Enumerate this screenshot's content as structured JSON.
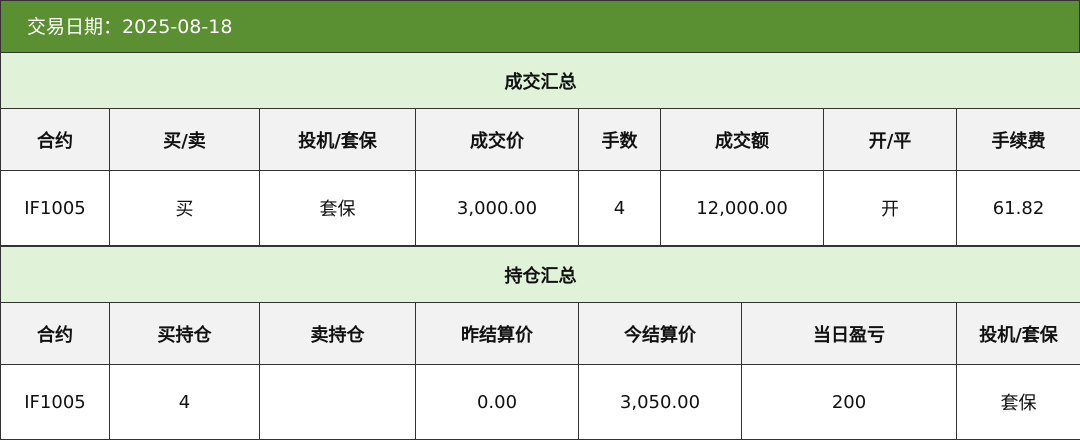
{
  "header": {
    "date_label": "交易日期：2025-08-18"
  },
  "trades": {
    "title": "成交汇总",
    "columns": [
      "合约",
      "买/卖",
      "投机/套保",
      "成交价",
      "手数",
      "成交额",
      "开/平",
      "手续费"
    ],
    "rows": [
      [
        "IF1005",
        "买",
        "套保",
        "3,000.00",
        "4",
        "12,000.00",
        "开",
        "61.82"
      ]
    ]
  },
  "positions": {
    "title": "持仓汇总",
    "columns": [
      "合约",
      "买持仓",
      "卖持仓",
      "昨结算价",
      "今结算价",
      "当日盈亏",
      "投机/套保"
    ],
    "rows": [
      [
        "IF1005",
        "4",
        "",
        "0.00",
        "3,050.00",
        "200",
        "套保"
      ]
    ]
  },
  "colors": {
    "header": "#5a8f32",
    "section": "#e0f2d8",
    "column_header": "#f2f2f2"
  }
}
